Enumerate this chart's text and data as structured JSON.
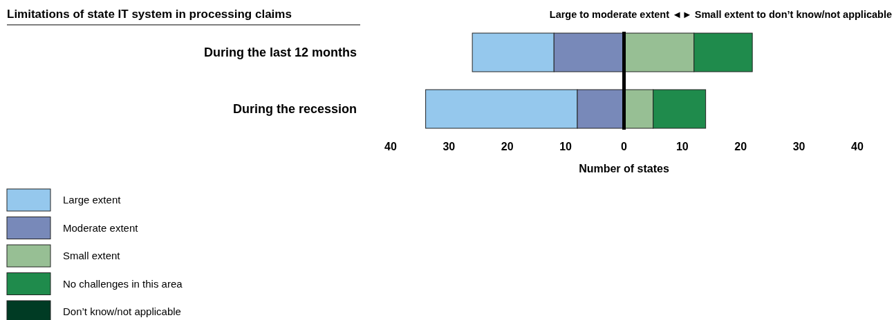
{
  "chart_data": {
    "type": "bar",
    "orientation": "horizontal",
    "title": "Limitations of state IT system in processing claims",
    "annotations": [
      "Large to moderate extent ◄► Small extent to don’t know/not applicable"
    ],
    "categories": [
      "During the last 12 months",
      "During the recession"
    ],
    "xlabel": "Number of states",
    "xlim": [
      -40,
      40
    ],
    "xticks": [
      {
        "value": -40,
        "label": "40"
      },
      {
        "value": -30,
        "label": "30"
      },
      {
        "value": -20,
        "label": "20"
      },
      {
        "value": -10,
        "label": "10"
      },
      0,
      10,
      20,
      30,
      40
    ],
    "ref_lines": [
      {
        "axis": "x",
        "value": 0,
        "color": "#000000"
      }
    ],
    "legend": "bottom left",
    "grid": false,
    "series": [
      {
        "name": "Large extent",
        "color": "#95c8ed",
        "values": [
          14,
          26
        ],
        "base": [
          -26,
          -34
        ]
      },
      {
        "name": "Moderate extent",
        "color": "#7889b9",
        "values": [
          12,
          8
        ],
        "base": [
          -12,
          -8
        ]
      },
      {
        "name": "Small extent",
        "color": "#97bf94",
        "values": [
          12,
          5
        ],
        "base": [
          0,
          0
        ]
      },
      {
        "name": "No challenges in this area",
        "color": "#1f8b4c",
        "values": [
          10,
          9
        ],
        "base": [
          12,
          5
        ]
      },
      {
        "name": "Don’t know/not applicable",
        "color": "#003b24",
        "values": [
          0,
          0
        ]
      }
    ]
  }
}
